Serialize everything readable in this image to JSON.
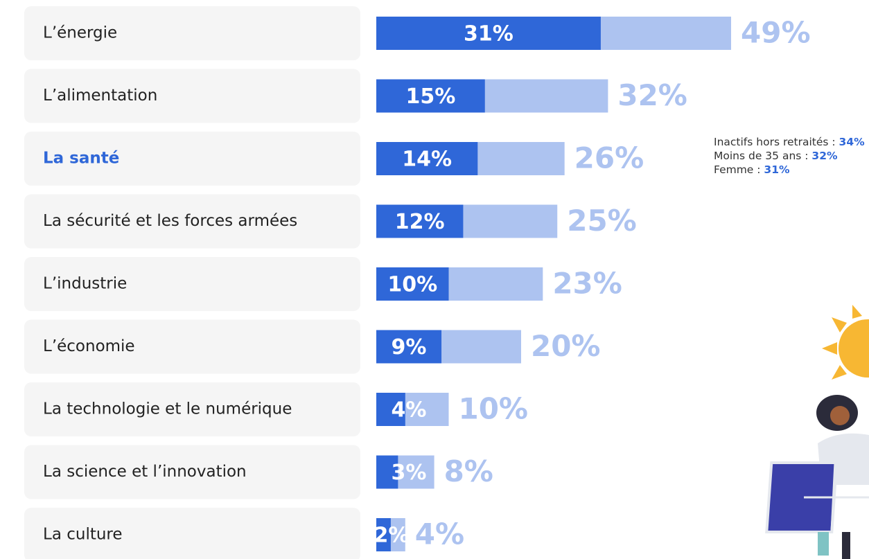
{
  "chart_data": {
    "type": "bar",
    "orientation": "horizontal",
    "categories": [
      "L’énergie",
      "L’alimentation",
      "La santé",
      "La sécurité et les forces armées",
      "L’industrie",
      "L’économie",
      "La technologie et le numérique",
      "La science et l’innovation",
      "La culture"
    ],
    "highlight_index": 2,
    "highlight_color": "#2f67d8",
    "xlim": [
      0,
      49
    ],
    "series": [
      {
        "color": "#adc3f0",
        "values": [
          49,
          32,
          26,
          25,
          23,
          20,
          10,
          8,
          4
        ],
        "value_labels": [
          "49%",
          "32%",
          "26%",
          "25%",
          "23%",
          "20%",
          "10%",
          "8%",
          "4%"
        ]
      },
      {
        "color": "#2f67d8",
        "values": [
          31,
          15,
          14,
          12,
          10,
          9,
          4,
          3,
          2
        ],
        "value_labels": [
          "31%",
          "15%",
          "14%",
          "12%",
          "10%",
          "9%",
          "4%",
          "3%",
          "2%"
        ]
      }
    ],
    "annotations": [
      {
        "text": "Inactifs hors retraités : ",
        "value": "34%"
      },
      {
        "text": "Moins de 35 ans : ",
        "value": "32%"
      },
      {
        "text": "Femme : ",
        "value": "31%"
      }
    ]
  }
}
